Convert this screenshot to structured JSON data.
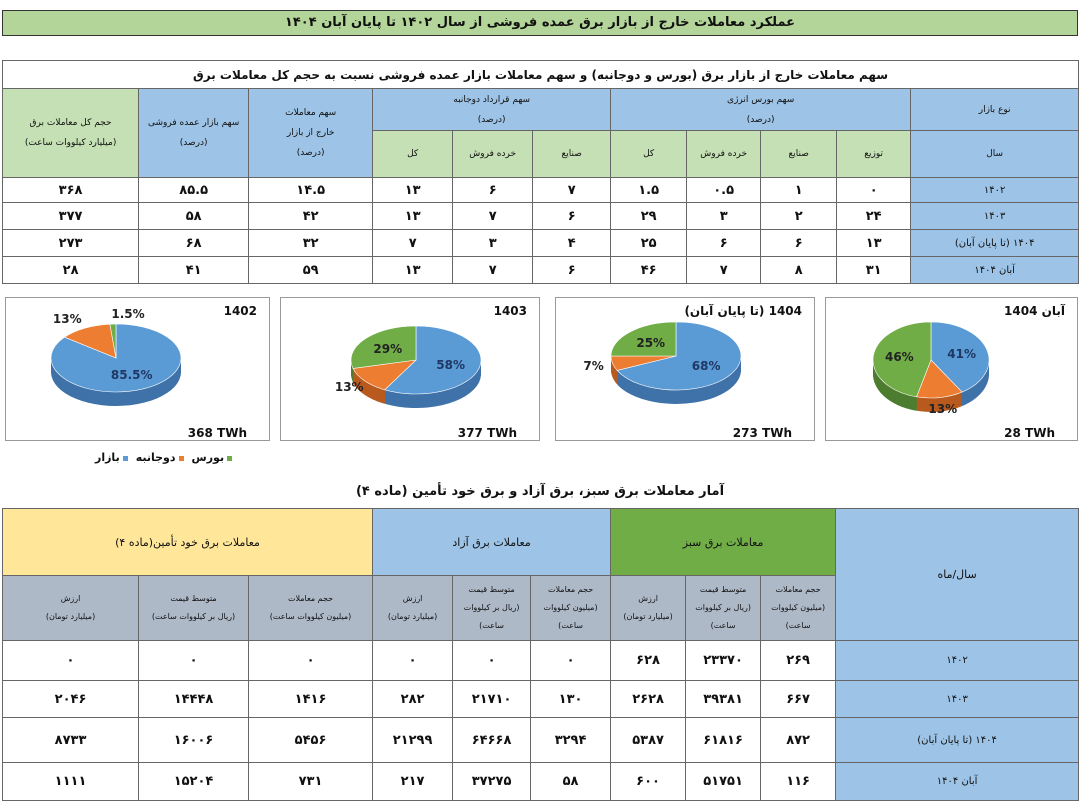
{
  "title": "عملکرد معاملات خارج از بازار برق عمده فروشی از سال ۱۴۰۲ تا پایان آبان ۱۴۰۴",
  "table1": {
    "caption": "سهم معاملات خارج از بازار برق (بورس و دوجانبه) و سهم معاملات بازار عمده فروشی نسبت به حجم کل معاملات برق",
    "market_type": "نوع بازار",
    "year": "سال",
    "exchange_group": "سهم بورس انرژی",
    "bilateral_group": "سهم قرارداد دوجانبه",
    "percent": "(درصد)",
    "sub": {
      "distribution": "توزیع",
      "industry": "صنایع",
      "retail": "خرده فروش",
      "total": "کل"
    },
    "offmarket_l1": "سهم معاملات",
    "offmarket_l2": "خارج از بازار",
    "wholesale": "سهم بازار عمده فروشی",
    "volume_l1": "حجم کل معاملات برق",
    "volume_l2": "(میلیارد کیلووات ساعت)",
    "rows": [
      {
        "year": "۱۴۰۲",
        "cells": [
          "۰",
          "۱",
          "۰.۵",
          "۱.۵",
          "۷",
          "۶",
          "۱۳",
          "۱۴.۵",
          "۸۵.۵",
          "۳۶۸"
        ]
      },
      {
        "year": "۱۴۰۳",
        "cells": [
          "۲۴",
          "۲",
          "۳",
          "۲۹",
          "۶",
          "۷",
          "۱۳",
          "۴۲",
          "۵۸",
          "۳۷۷"
        ]
      },
      {
        "year": "۱۴۰۴ (تا پایان آبان)",
        "cells": [
          "۱۳",
          "۶",
          "۶",
          "۲۵",
          "۴",
          "۳",
          "۷",
          "۳۲",
          "۶۸",
          "۲۷۳"
        ]
      },
      {
        "year": "آبان ۱۴۰۴",
        "cells": [
          "۳۱",
          "۸",
          "۷",
          "۴۶",
          "۶",
          "۷",
          "۱۳",
          "۵۹",
          "۴۱",
          "۲۸"
        ]
      }
    ]
  },
  "chart_data": [
    {
      "type": "pie",
      "title": "1402",
      "total": "368 TWh",
      "slices": [
        {
          "name": "بازار",
          "value": 85.5,
          "label": "85.5%"
        },
        {
          "name": "دوجانبه",
          "value": 13,
          "label": "13%"
        },
        {
          "name": "بورس",
          "value": 1.5,
          "label": "1.5%"
        }
      ]
    },
    {
      "type": "pie",
      "title": "1403",
      "total": "377 TWh",
      "slices": [
        {
          "name": "بازار",
          "value": 58,
          "label": "58%"
        },
        {
          "name": "دوجانبه",
          "value": 13,
          "label": "13%"
        },
        {
          "name": "بورس",
          "value": 29,
          "label": "29%"
        }
      ]
    },
    {
      "type": "pie",
      "title": "1404 (تا پایان آبان)",
      "total": "273 TWh",
      "slices": [
        {
          "name": "بازار",
          "value": 68,
          "label": "68%"
        },
        {
          "name": "دوجانبه",
          "value": 7,
          "label": "7%"
        },
        {
          "name": "بورس",
          "value": 25,
          "label": "25%"
        }
      ]
    },
    {
      "type": "pie",
      "title": "آبان 1404",
      "total": "28 TWh",
      "slices": [
        {
          "name": "بازار",
          "value": 41,
          "label": "41%"
        },
        {
          "name": "دوجانبه",
          "value": 13,
          "label": "13%"
        },
        {
          "name": "بورس",
          "value": 46,
          "label": "46%"
        }
      ]
    }
  ],
  "legend": [
    {
      "name": "بازار",
      "color": "#5b9bd5"
    },
    {
      "name": "دوجانبه",
      "color": "#ed7d31"
    },
    {
      "name": "بورس",
      "color": "#70ad47"
    }
  ],
  "colors": {
    "market": "#5b9bd5",
    "bilateral": "#ed7d31",
    "exchange": "#70ad47"
  },
  "table2": {
    "title": "آمار معاملات برق سبز، برق آزاد و برق خود تأمین (ماده ۴)",
    "year_month": "سال/ماه",
    "green": "معاملات برق سبز",
    "free": "معاملات برق آزاد",
    "self": "معاملات برق خود تأمین(ماده ۴)",
    "sub": {
      "vol1": "حجم معاملات",
      "vol2": "(میلیون کیلووات ساعت)",
      "price1": "متوسط قیمت",
      "price2": "(ریال بر کیلووات ساعت)",
      "val1": "ارزش",
      "val2": "(میلیارد تومان)"
    },
    "rows": [
      {
        "year": "۱۴۰۲",
        "cells": [
          "۲۶۹",
          "۲۳۳۷۰",
          "۶۲۸",
          "۰",
          "۰",
          "۰",
          "۰",
          "۰",
          "۰"
        ]
      },
      {
        "year": "۱۴۰۳",
        "cells": [
          "۶۶۷",
          "۳۹۳۸۱",
          "۲۶۲۸",
          "۱۳۰",
          "۲۱۷۱۰",
          "۲۸۲",
          "۱۴۱۶",
          "۱۴۴۴۸",
          "۲۰۴۶"
        ]
      },
      {
        "year": "۱۴۰۴ (تا پایان آبان)",
        "cells": [
          "۸۷۲",
          "۶۱۸۱۶",
          "۵۳۸۷",
          "۳۲۹۴",
          "۶۴۶۶۸",
          "۲۱۲۹۹",
          "۵۴۵۶",
          "۱۶۰۰۶",
          "۸۷۳۳"
        ]
      },
      {
        "year": "آبان ۱۴۰۴",
        "cells": [
          "۱۱۶",
          "۵۱۷۵۱",
          "۶۰۰",
          "۵۸",
          "۳۷۲۷۵",
          "۲۱۷",
          "۷۳۱",
          "۱۵۲۰۴",
          "۱۱۱۱"
        ]
      }
    ]
  }
}
